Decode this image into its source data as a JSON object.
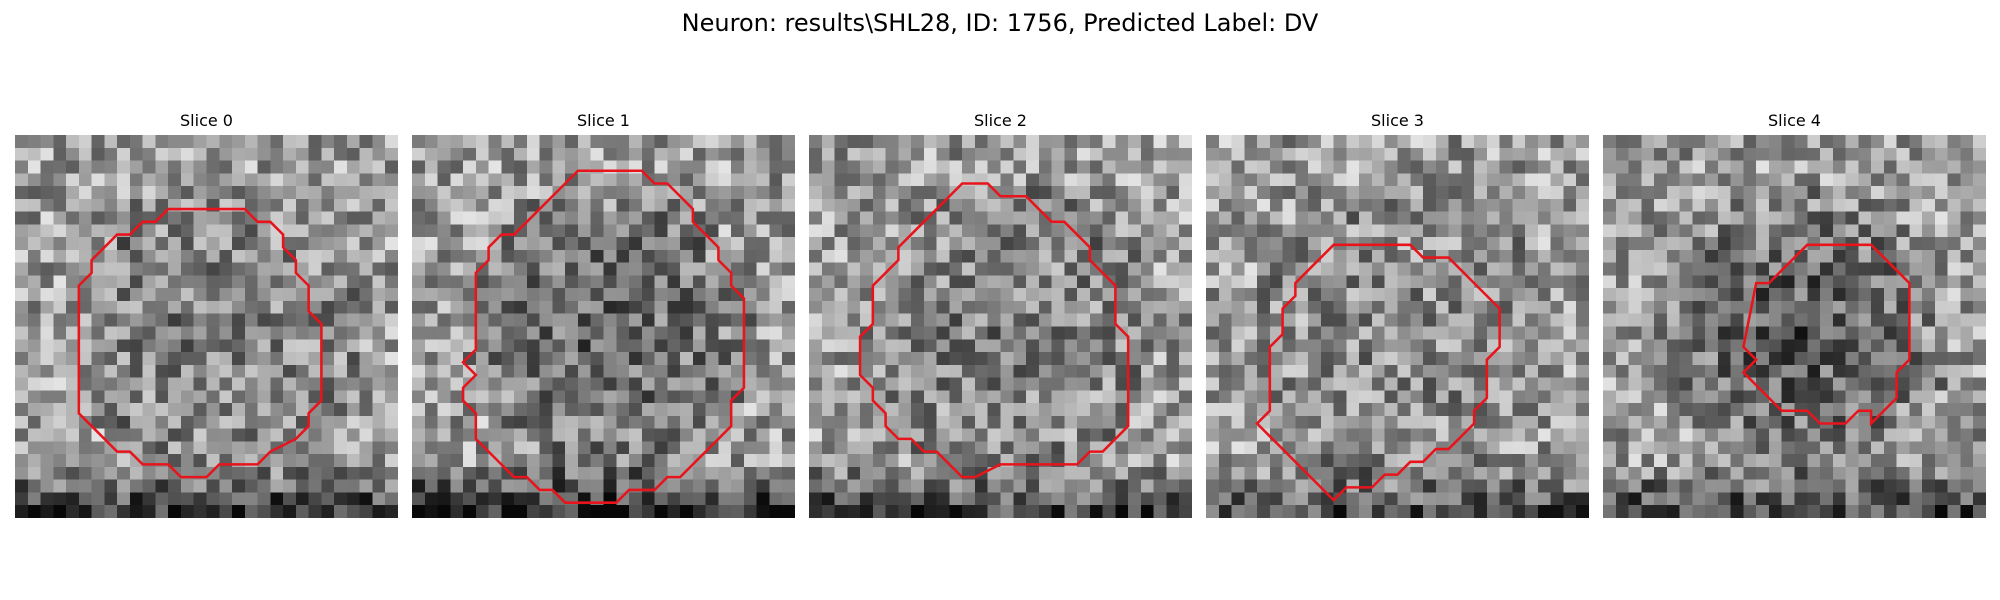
{
  "figure": {
    "title": "Neuron: results\\SHL28, ID: 1756, Predicted Label: DV",
    "contour_color": "#e8141c"
  },
  "slices": [
    {
      "title": "Slice 0",
      "seed": 11,
      "dark_center": 0.15,
      "dark_bottom": 0.5
    },
    {
      "title": "Slice 1",
      "seed": 23,
      "dark_center": 0.25,
      "dark_bottom": 0.6
    },
    {
      "title": "Slice 2",
      "seed": 37,
      "dark_center": 0.15,
      "dark_bottom": 0.45
    },
    {
      "title": "Slice 3",
      "seed": 41,
      "dark_center": 0.1,
      "dark_bottom": 0.4
    },
    {
      "title": "Slice 4",
      "seed": 53,
      "dark_center": 0.3,
      "dark_bottom": 0.45
    }
  ]
}
